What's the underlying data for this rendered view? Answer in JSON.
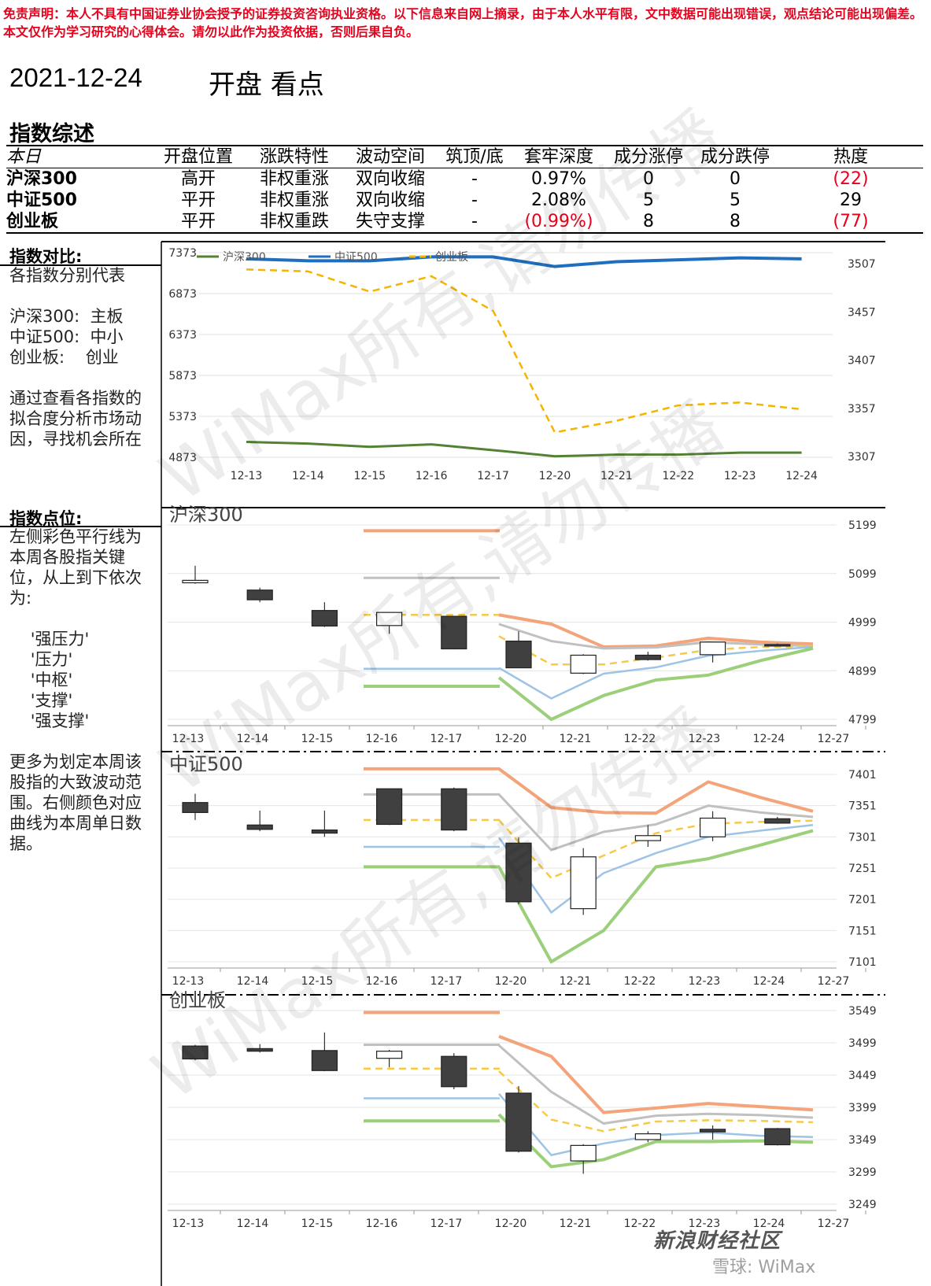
{
  "disclaimer": "免责声明：本人不具有中国证券业协会授予的证券投资咨询执业资格。以下信息来自网上摘录，由于本人水平有限，文中数据可能出现错误，观点结论可能出现偏差。本文仅作为学习研究的心得体会。请勿以此作为投资依据，否则后果自负。",
  "header": {
    "date": "2021-12-24",
    "title": "开盘 看点"
  },
  "summary": {
    "title": "指数综述",
    "columns": [
      "本日",
      "开盘位置",
      "涨跌特性",
      "波动空间",
      "筑顶/底",
      "套牢深度",
      "成分涨停",
      "成分跌停",
      "热度"
    ],
    "rows": [
      [
        "沪深300",
        "高开",
        "非权重涨",
        "双向收缩",
        "-",
        "0.97%",
        "0",
        "0",
        "(22)"
      ],
      [
        "中证500",
        "平开",
        "非权重涨",
        "双向收缩",
        "-",
        "2.08%",
        "5",
        "5",
        "29"
      ],
      [
        "创业板",
        "平开",
        "非权重跌",
        "失守支撑",
        "-",
        "(0.99%)",
        "8",
        "8",
        "(77)"
      ]
    ]
  },
  "sidebar": {
    "compare_head": "指数对比:",
    "compare_text": "各指数分别代表\n\n沪深300:  主板\n中证500:  中小\n创业板:    创业\n\n通过查看各指数的\n拟合度分析市场动\n因，寻找机会所在",
    "levels_head": "指数点位:",
    "levels_text": "左侧彩色平行线为\n本周各股指关键\n位，从上到下依次\n为:\n\n    '强压力'\n    '压力'\n    '中枢'\n    '支撑'\n    '强支撑'\n\n更多为划定本周该\n股指的大致波动范\n围。右侧颜色对应\n曲线为本周单日数\n据。"
  },
  "watermark": "WiMax所有,请勿传播",
  "footer": {
    "brand": "新浪财经社区",
    "sub": "雪球: WiMax"
  },
  "colors": {
    "hs300": "#548235",
    "zz500": "#1f6fbf",
    "cyb": "#f4b400",
    "strong_resist": "#f4a47a",
    "resist": "#c0c0c0",
    "pivot": "#f7c948",
    "support": "#9dc3e6",
    "strong_support": "#9ccf7a",
    "bear_candle": "#404040"
  },
  "chart_data": [
    {
      "type": "line",
      "id": "compare",
      "categories": [
        "12-13",
        "12-14",
        "12-15",
        "12-16",
        "12-17",
        "12-20",
        "12-21",
        "12-22",
        "12-23",
        "12-24"
      ],
      "left_ticks": [
        7373,
        6873,
        6373,
        5873,
        5373,
        4873
      ],
      "right_ticks": [
        3507,
        3457,
        3407,
        3357,
        3307
      ],
      "ylim_left": [
        4873,
        7373
      ],
      "ylim_right": [
        3307,
        3519
      ],
      "series": [
        {
          "name": "沪深300",
          "axis": "left",
          "values": [
            5060,
            5040,
            5000,
            5030,
            4960,
            4885,
            4905,
            4905,
            4930,
            4930
          ]
        },
        {
          "name": "中证500",
          "axis": "right",
          "values": [
            3512,
            3510,
            3510,
            3514,
            3514,
            3504,
            3509,
            3511,
            3513,
            3512
          ]
        },
        {
          "name": "创业板",
          "axis": "right",
          "values": [
            3501,
            3499,
            3478,
            3494,
            3458,
            3332,
            3344,
            3360,
            3363,
            3356
          ]
        }
      ]
    },
    {
      "type": "candlestick",
      "id": "hs300",
      "title": "沪深300",
      "categories": [
        "12-13",
        "12-14",
        "12-15",
        "12-16",
        "12-17",
        "12-20",
        "12-21",
        "12-22",
        "12-23",
        "12-24",
        "12-27"
      ],
      "y_ticks": [
        5199,
        5099,
        4999,
        4899,
        4799
      ],
      "ylim": [
        4799,
        5199
      ],
      "candles": [
        {
          "o": 5080,
          "c": 5085,
          "h": 5115,
          "l": 5078
        },
        {
          "o": 5065,
          "c": 5045,
          "h": 5070,
          "l": 5040
        },
        {
          "o": 5023,
          "c": 4991,
          "h": 5040,
          "l": 4989
        },
        {
          "o": 4992,
          "c": 5019,
          "h": 5020,
          "l": 4975
        },
        {
          "o": 5011,
          "c": 4944,
          "h": 5012,
          "l": 4943
        },
        {
          "o": 4960,
          "c": 4905,
          "h": 4980,
          "l": 4905
        },
        {
          "o": 4894,
          "c": 4931,
          "h": 4933,
          "l": 4892
        },
        {
          "o": 4931,
          "c": 4922,
          "h": 4938,
          "l": 4920
        },
        {
          "o": 4932,
          "c": 4958,
          "h": 4958,
          "l": 4916
        },
        {
          "o": 4953,
          "c": 4951,
          "h": 4955,
          "l": 4950
        }
      ],
      "key_levels": {
        "strong_resist": 5187,
        "resist": 5090,
        "pivot": 5014,
        "support": 4903,
        "strong_support": 4867
      },
      "daily_lines": {
        "strong_resist": [
          5014,
          4995,
          4948,
          4950,
          4966,
          4958,
          4954
        ],
        "resist": [
          4995,
          4960,
          4945,
          4947,
          4958,
          4953,
          4950
        ],
        "pivot": [
          4970,
          4912,
          4912,
          4926,
          4942,
          4948,
          4949
        ],
        "support": [
          4905,
          4842,
          4893,
          4906,
          4930,
          4940,
          4948
        ],
        "strong_support": [
          4885,
          4799,
          4848,
          4880,
          4890,
          4920,
          4945
        ]
      }
    },
    {
      "type": "candlestick",
      "id": "zz500",
      "title": "中证500",
      "categories": [
        "12-13",
        "12-14",
        "12-15",
        "12-16",
        "12-17",
        "12-20",
        "12-21",
        "12-22",
        "12-23",
        "12-24",
        "12-27"
      ],
      "y_ticks": [
        7401,
        7351,
        7301,
        7251,
        7201,
        7151,
        7101
      ],
      "ylim": [
        7101,
        7401
      ],
      "candles": [
        {
          "o": 7356,
          "c": 7340,
          "h": 7370,
          "l": 7328
        },
        {
          "o": 7320,
          "c": 7313,
          "h": 7343,
          "l": 7310
        },
        {
          "o": 7312,
          "c": 7307,
          "h": 7343,
          "l": 7301
        },
        {
          "o": 7378,
          "c": 7321,
          "h": 7378,
          "l": 7320
        },
        {
          "o": 7378,
          "c": 7312,
          "h": 7380,
          "l": 7310
        },
        {
          "o": 7291,
          "c": 7197,
          "h": 7300,
          "l": 7193
        },
        {
          "o": 7186,
          "c": 7269,
          "h": 7283,
          "l": 7176
        },
        {
          "o": 7295,
          "c": 7303,
          "h": 7320,
          "l": 7285
        },
        {
          "o": 7301,
          "c": 7331,
          "h": 7342,
          "l": 7294
        },
        {
          "o": 7330,
          "c": 7323,
          "h": 7333,
          "l": 7322
        }
      ],
      "key_levels": {
        "strong_resist": 7410,
        "resist": 7369,
        "pivot": 7328,
        "support": 7285,
        "strong_support": 7253
      },
      "daily_lines": {
        "strong_resist": [
          7410,
          7348,
          7340,
          7339,
          7389,
          7364,
          7342
        ],
        "resist": [
          7369,
          7280,
          7309,
          7321,
          7351,
          7340,
          7333
        ],
        "pivot": [
          7328,
          7235,
          7271,
          7307,
          7322,
          7325,
          7327
        ],
        "support": [
          7300,
          7180,
          7243,
          7275,
          7301,
          7311,
          7320
        ],
        "strong_support": [
          7253,
          7101,
          7151,
          7253,
          7266,
          7288,
          7311
        ]
      }
    },
    {
      "type": "candlestick",
      "id": "cyb",
      "title": "创业板",
      "categories": [
        "12-13",
        "12-14",
        "12-15",
        "12-16",
        "12-17",
        "12-20",
        "12-21",
        "12-22",
        "12-23",
        "12-24",
        "12-27"
      ],
      "y_ticks": [
        3549,
        3499,
        3449,
        3399,
        3349,
        3299,
        3249
      ],
      "ylim": [
        3249,
        3549
      ],
      "candles": [
        {
          "o": 3494,
          "c": 3474,
          "h": 3496,
          "l": 3472
        },
        {
          "o": 3490,
          "c": 3486,
          "h": 3497,
          "l": 3484
        },
        {
          "o": 3487,
          "c": 3456,
          "h": 3515,
          "l": 3455
        },
        {
          "o": 3475,
          "c": 3486,
          "h": 3488,
          "l": 3461
        },
        {
          "o": 3478,
          "c": 3431,
          "h": 3483,
          "l": 3427
        },
        {
          "o": 3421,
          "c": 3331,
          "h": 3432,
          "l": 3329
        },
        {
          "o": 3316,
          "c": 3340,
          "h": 3342,
          "l": 3296
        },
        {
          "o": 3349,
          "c": 3358,
          "h": 3362,
          "l": 3345
        },
        {
          "o": 3365,
          "c": 3361,
          "h": 3371,
          "l": 3349
        },
        {
          "o": 3366,
          "c": 3341,
          "h": 3367,
          "l": 3340
        }
      ],
      "key_levels": {
        "strong_resist": 3546,
        "resist": 3496,
        "pivot": 3459,
        "support": 3413,
        "strong_support": 3378
      },
      "daily_lines": {
        "strong_resist": [
          3509,
          3478,
          3391,
          3398,
          3405,
          3400,
          3395
        ],
        "resist": [
          3495,
          3423,
          3374,
          3386,
          3389,
          3387,
          3383
        ],
        "pivot": [
          3455,
          3380,
          3362,
          3377,
          3379,
          3378,
          3376
        ],
        "support": [
          3420,
          3325,
          3343,
          3356,
          3360,
          3355,
          3353
        ],
        "strong_support": [
          3388,
          3307,
          3318,
          3346,
          3346,
          3347,
          3345
        ]
      }
    }
  ]
}
